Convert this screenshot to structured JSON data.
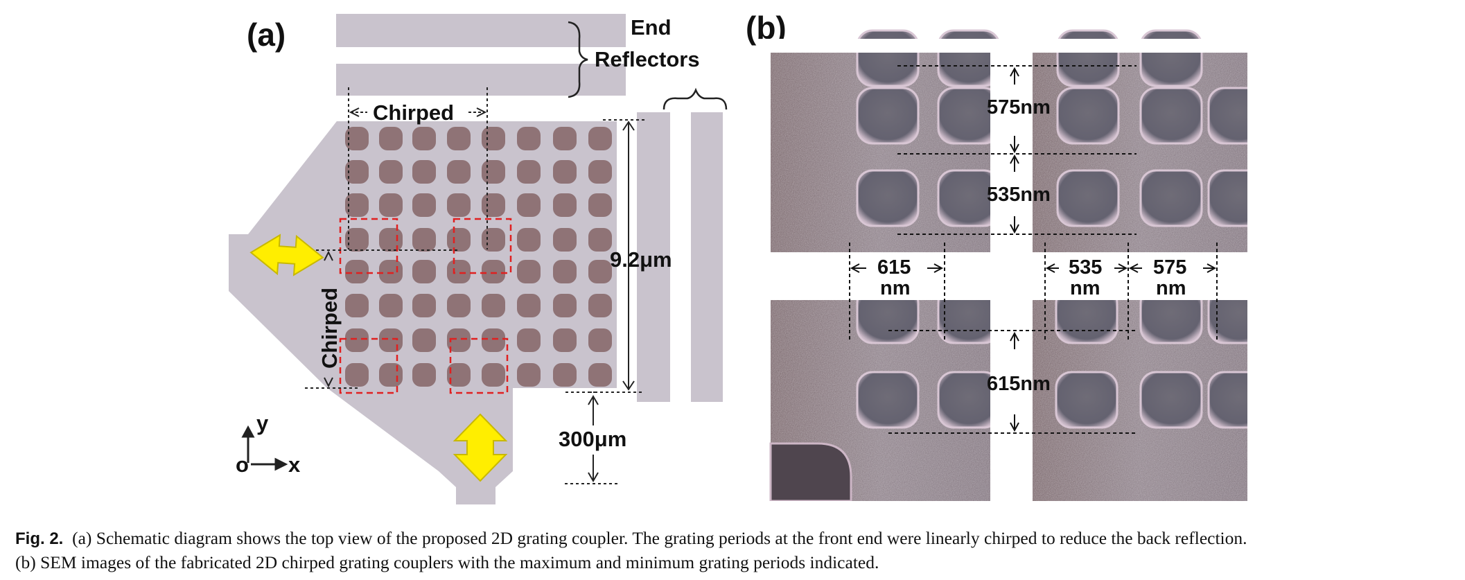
{
  "figure": {
    "panel_a": {
      "label": "(a)",
      "end_reflectors": [
        "End",
        "Reflectors"
      ],
      "chirped_top": "Chirped",
      "chirped_left": "Chirped",
      "dim_height": "9.2μm",
      "dim_taper": "300μm",
      "axis_y": "y",
      "axis_x": "x",
      "axis_origin": "o"
    },
    "panel_b": {
      "label": "(b)",
      "label_575": "575nm",
      "label_535": "535nm",
      "label_615": "615nm",
      "h_615": [
        "615",
        "nm"
      ],
      "h_535": [
        "535",
        "nm"
      ],
      "h_575": [
        "575",
        "nm"
      ]
    }
  },
  "caption": {
    "fig_label": "Fig. 2.",
    "line1": "(a) Schematic diagram shows the top view of the proposed 2D grating coupler. The grating periods at the front end were linearly chirped to reduce the back reflection.",
    "line2": "(b) SEM images of the fabricated 2D chirped grating couplers with the maximum and minimum grating periods indicated."
  },
  "colors": {
    "device_gray": "#c9c3cd",
    "hole_brown": "#8f7376",
    "arrow_yellow": "#ffee00",
    "dash_red": "#e02020",
    "sem_background": "#8d8088"
  }
}
